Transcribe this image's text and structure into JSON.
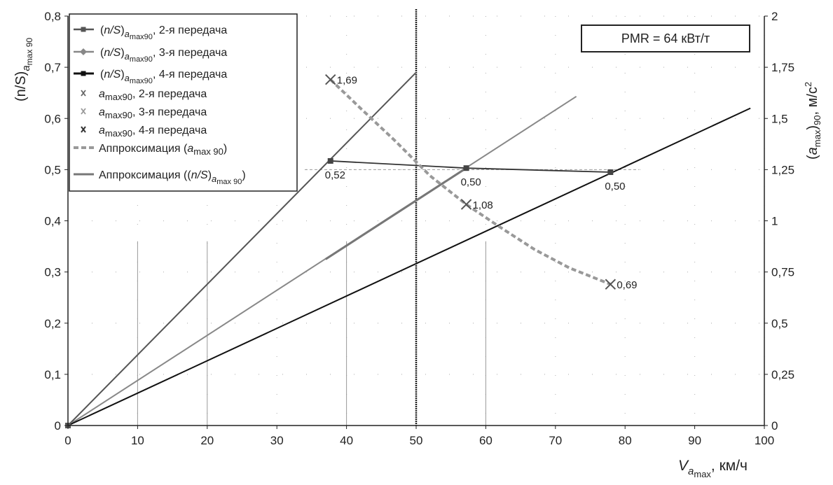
{
  "chart_data": {
    "type": "line",
    "annotation": "PMR = 64 кВт/т",
    "x_axis": {
      "label_main": "V",
      "label_sub": "a",
      "label_subsub": "max",
      "label_unit": ", км/ч",
      "range": [
        0,
        100
      ],
      "ticks": [
        0,
        10,
        20,
        30,
        40,
        50,
        60,
        70,
        80,
        90,
        100
      ]
    },
    "y_left": {
      "label_main": "(n/S)",
      "label_sub": "a",
      "label_subsub": "max 90",
      "range": [
        0,
        0.8
      ],
      "ticks": [
        "0",
        "0,1",
        "0,2",
        "0,3",
        "0,4",
        "0,5",
        "0,6",
        "0,7",
        "0,8"
      ]
    },
    "y_right": {
      "label_open": "(",
      "label_a": "a",
      "label_sub": "max",
      "label_close": ")",
      "label_sub2": "90",
      "label_unit": ", м/с",
      "label_sup": "2",
      "range": [
        0,
        2
      ],
      "ticks": [
        "0",
        "0,25",
        "0,5",
        "0,75",
        "1",
        "1,25",
        "1,5",
        "1,75",
        "2"
      ]
    },
    "legend": [
      {
        "prefix": "(",
        "italic": "n/S",
        "suffix": ")",
        "sub": "a",
        "subsub": "max90",
        "text": ", 2-я передача"
      },
      {
        "prefix": "(",
        "italic": "n/S",
        "suffix": ")",
        "sub": "a",
        "subsub": "max90",
        "text": ", 3-я передача"
      },
      {
        "prefix": "(",
        "italic": "n/S",
        "suffix": ")",
        "sub": "a",
        "subsub": "max90",
        "text": ", 4-я передача"
      },
      {
        "italic": "a",
        "sub": "max90",
        "text": ", 2-я передача"
      },
      {
        "italic": "a",
        "sub": "max90",
        "text": ", 3-я передача"
      },
      {
        "italic": "a",
        "sub": "max90",
        "text": ", 4-я передача"
      },
      {
        "text": "Аппроксимация (",
        "italic": "a",
        "sub": "max 90",
        "suffix": ")"
      },
      {
        "text": "Аппроксимация ((",
        "italic": "n/S",
        "suffix": ")",
        "sub": "a",
        "subsub": "max 90",
        "close": ")"
      }
    ],
    "gear_lines": [
      {
        "name": "2",
        "x": [
          0,
          50
        ],
        "y": [
          0,
          0.69
        ],
        "color": "#555555",
        "width": 2
      },
      {
        "name": "3",
        "x": [
          0,
          73
        ],
        "y": [
          0,
          0.643
        ],
        "color": "#888888",
        "width": 2
      },
      {
        "name": "4",
        "x": [
          0,
          98
        ],
        "y": [
          0,
          0.62
        ],
        "color": "#111111",
        "width": 2
      }
    ],
    "ns_points": {
      "x": [
        37.7,
        57.2,
        77.9
      ],
      "y": [
        0.52,
        0.5,
        0.5
      ],
      "labels": [
        "0,52",
        "0,50",
        "0,50"
      ],
      "connector_y": [
        0.517,
        0.503,
        0.495
      ]
    },
    "a_points": {
      "x": [
        37.7,
        57.2,
        77.9
      ],
      "y": [
        1.69,
        1.08,
        0.69
      ],
      "labels": [
        "1,69",
        "1,08",
        "0,69"
      ]
    },
    "approx_a": {
      "x": [
        37.7,
        42,
        47,
        52,
        57.2,
        62,
        67,
        72,
        77.9
      ],
      "y": [
        1.69,
        1.55,
        1.39,
        1.22,
        1.08,
        0.97,
        0.86,
        0.77,
        0.69
      ]
    },
    "approx_ns": {
      "x": [
        37,
        57.2
      ],
      "y": [
        0.325,
        0.503
      ]
    },
    "reference": {
      "x": 50,
      "y": 0.5
    },
    "verticals": [
      10,
      20,
      40,
      60
    ]
  }
}
